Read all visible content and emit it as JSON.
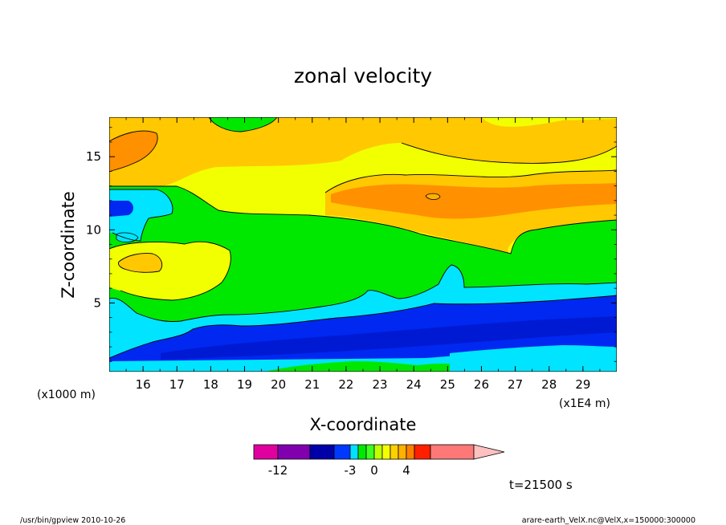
{
  "chart_data": {
    "type": "heatmap",
    "title": "zonal velocity",
    "xlabel": "X-coordinate",
    "ylabel": "Z-coordinate",
    "x_unit_label": "(x1E4 m)",
    "y_unit_label": "(x1000 m)",
    "x_ticks": [
      "16",
      "17",
      "18",
      "19",
      "20",
      "21",
      "22",
      "23",
      "24",
      "25",
      "26",
      "27",
      "28",
      "29"
    ],
    "y_ticks": [
      "5",
      "10",
      "15"
    ],
    "xlim": [
      15.0,
      30.0
    ],
    "ylim": [
      0.3,
      17.7
    ],
    "colorbar": {
      "labels": [
        "-12",
        "-3",
        "0",
        "4"
      ],
      "levels": [
        -14,
        -12,
        -10,
        -8,
        -6,
        -4,
        -3,
        -2,
        -1,
        0,
        1,
        2,
        3,
        4,
        6,
        8
      ],
      "colors": [
        "#e000a0",
        "#8000b0",
        "#0000a8",
        "#0038ff",
        "#00e0ff",
        "#00e800",
        "#40ff20",
        "#c0ff00",
        "#f4ff00",
        "#ffd000",
        "#ffb000",
        "#ff8000",
        "#ff2000",
        "#ff7878",
        "#ffc0c0"
      ]
    },
    "annotation": "t=21500 s",
    "footer_left": "/usr/bin/gpview   2010-10-26",
    "footer_right": "arare-earth_VelX.nc@VelX,x=150000:300000"
  },
  "colors": {
    "background": "#ffffff",
    "orange_dark": "#ff9000",
    "orange": "#ffc800",
    "yellow": "#f2ff00",
    "green": "#00e800",
    "cyan": "#00e4ff",
    "blue": "#0028f0",
    "navy": "#0000a0"
  }
}
